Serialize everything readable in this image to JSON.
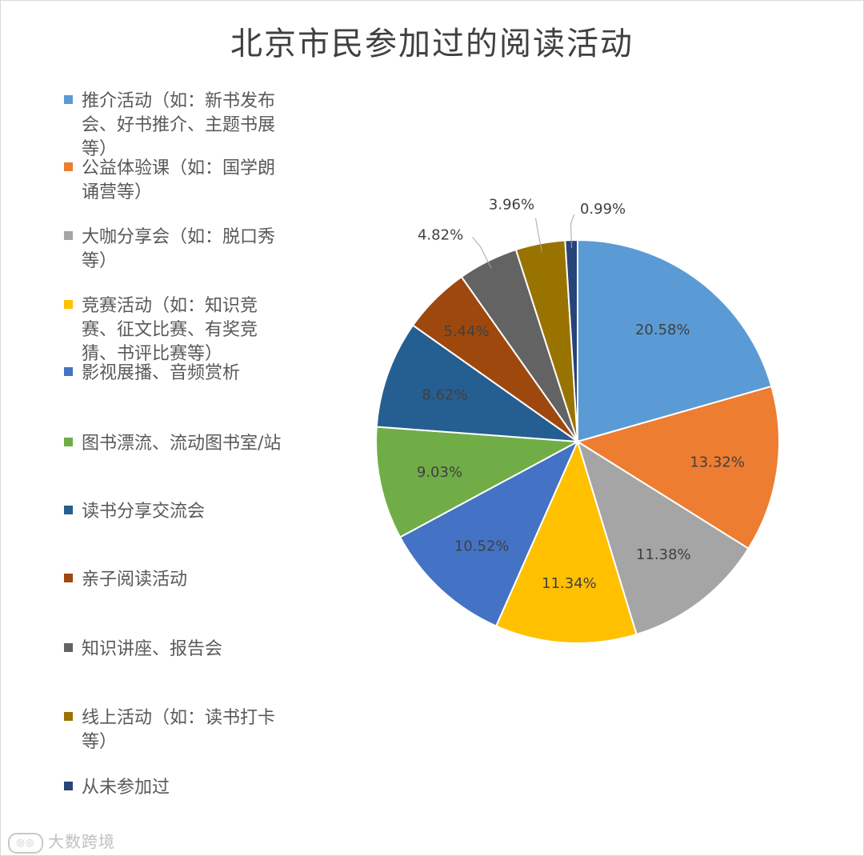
{
  "chart_data": {
    "type": "pie",
    "title": "北京市民参加过的阅读活动",
    "slices": [
      {
        "label": "推介活动（如：新书发布会、好书推介、主题书展等）",
        "value": 20.58,
        "display": "20.58%",
        "color": "#5b9bd5"
      },
      {
        "label": "公益体验课（如：国学朗诵营等）",
        "value": 13.32,
        "display": "13.32%",
        "color": "#ed7d31"
      },
      {
        "label": "大咖分享会（如：脱口秀等）",
        "value": 11.38,
        "display": "11.38%",
        "color": "#a5a5a5"
      },
      {
        "label": "竞赛活动（如：知识竞赛、征文比赛、有奖竞猜、书评比赛等）",
        "value": 11.34,
        "display": "11.34%",
        "color": "#ffc000"
      },
      {
        "label": "影视展播、音频赏析",
        "value": 10.52,
        "display": "10.52%",
        "color": "#4472c4"
      },
      {
        "label": "图书漂流、流动图书室/站",
        "value": 9.03,
        "display": "9.03%",
        "color": "#70ad47"
      },
      {
        "label": "读书分享交流会",
        "value": 8.62,
        "display": "8.62%",
        "color": "#255e91"
      },
      {
        "label": "亲子阅读活动",
        "value": 5.44,
        "display": "5.44%",
        "color": "#9e480e"
      },
      {
        "label": "知识讲座、报告会",
        "value": 4.82,
        "display": "4.82%",
        "color": "#636363"
      },
      {
        "label": "线上活动（如：读书打卡等）",
        "value": 3.96,
        "display": "3.96%",
        "color": "#997300"
      },
      {
        "label": "从未参加过",
        "value": 0.99,
        "display": "0.99%",
        "color": "#264478"
      }
    ],
    "legend_position": "left"
  },
  "legend_lines": [
    [
      "推介活动（如：新书发布",
      "会、好书推介、主题书展",
      "等）"
    ],
    [
      "公益体验课（如：国学朗",
      "诵营等）"
    ],
    [
      "大咖分享会（如：脱口秀",
      "等）"
    ],
    [
      "竞赛活动（如：知识竞",
      "赛、征文比赛、有奖竞",
      "猜、书评比赛等）"
    ],
    [
      "影视展播、音频赏析"
    ],
    [
      "图书漂流、流动图书室/站"
    ],
    [
      "读书分享交流会"
    ],
    [
      "亲子阅读活动"
    ],
    [
      "知识讲座、报告会"
    ],
    [
      "线上活动（如：读书打卡",
      "等）"
    ],
    [
      "从未参加过"
    ]
  ],
  "watermark": "大数跨境"
}
